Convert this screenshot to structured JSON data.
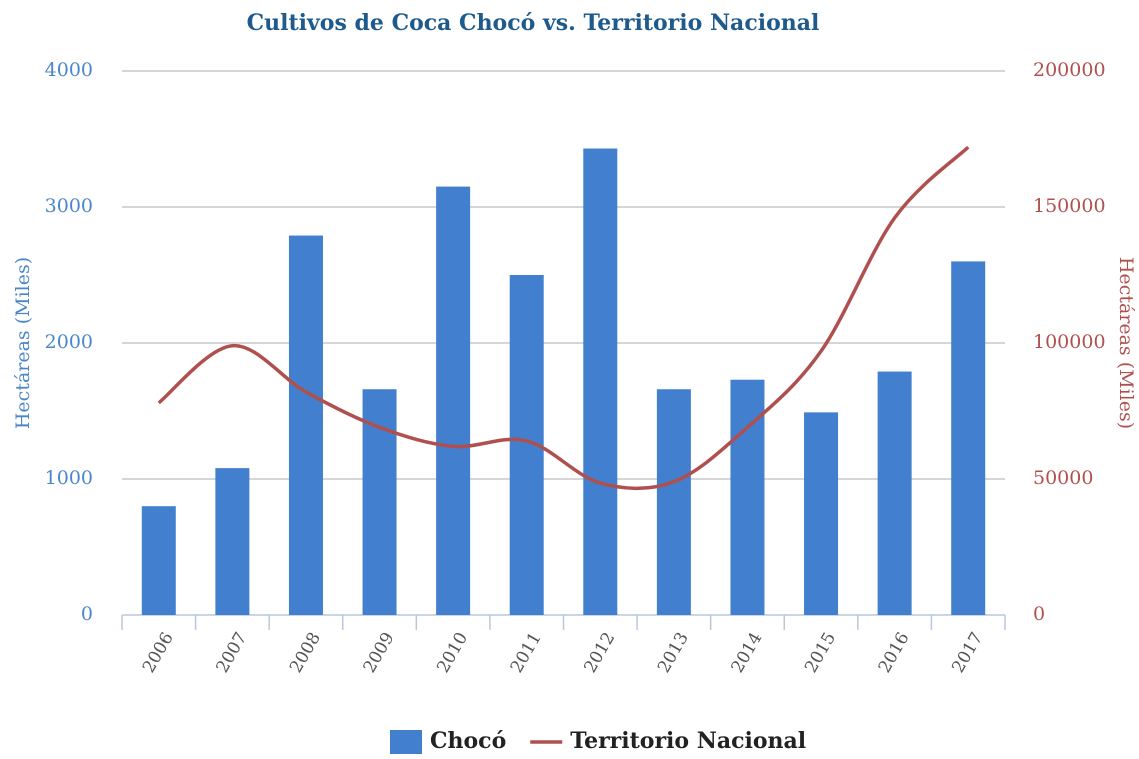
{
  "chart_data": {
    "type": "bar-line",
    "title": "Cultivos de Coca Chocó vs. Territorio Nacional",
    "y_label": "Hectáreas (Miles)",
    "y2_label": "Hectáreas (Miles)",
    "categories": [
      "2006",
      "2007",
      "2008",
      "2009",
      "2010",
      "2011",
      "2012",
      "2013",
      "2014",
      "2015",
      "2016",
      "2017"
    ],
    "series": [
      {
        "name": "Chocó",
        "type": "bar",
        "axis": "y",
        "color": "#427fcf",
        "values": [
          800,
          1080,
          2790,
          1660,
          3150,
          2500,
          3430,
          1660,
          1730,
          1490,
          1790,
          2600
        ]
      },
      {
        "name": "Territorio Nacional",
        "type": "line",
        "axis": "y2",
        "color": "#b0504e",
        "values": [
          78000,
          99000,
          82000,
          69000,
          62000,
          64000,
          48500,
          49000,
          69000,
          97000,
          146000,
          172000
        ]
      }
    ],
    "ylim": [
      0,
      4000
    ],
    "yticks": [
      0,
      1000,
      2000,
      3000,
      4000
    ],
    "y2lim": [
      0,
      200000
    ],
    "y2ticks": [
      0,
      50000,
      100000,
      150000,
      200000
    ],
    "grid": true,
    "legend": "bottom"
  }
}
